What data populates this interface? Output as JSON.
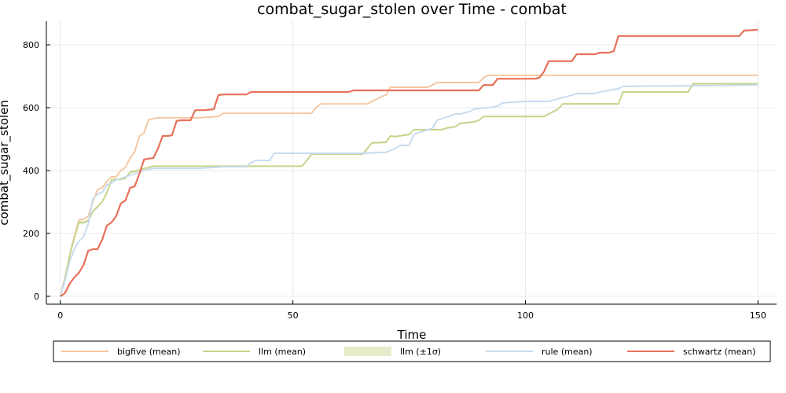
{
  "chart_data": {
    "type": "line",
    "title": "combat_sugar_stolen over Time - combat",
    "xlabel": "Time",
    "ylabel": "combat_sugar_stolen",
    "xlim": [
      -3,
      154
    ],
    "ylim": [
      -25,
      875
    ],
    "xticks": [
      0,
      50,
      100,
      150
    ],
    "yticks": [
      0,
      200,
      400,
      600,
      800
    ],
    "grid": true,
    "legend_position": "bottom",
    "legend": [
      "bigfive (mean)",
      "llm (mean)",
      "llm (±1σ)",
      "rule (mean)",
      "schwartz (mean)"
    ],
    "series": [
      {
        "name": "bigfive (mean)",
        "color": "#f5c6a0",
        "x": [
          0,
          1,
          2,
          3,
          4,
          5,
          6,
          7,
          8,
          9,
          10,
          11,
          12,
          13,
          14,
          15,
          16,
          17,
          18,
          19,
          20,
          21,
          22,
          30,
          34,
          35,
          54,
          55,
          56,
          65,
          66,
          69,
          70,
          71,
          72,
          79,
          80,
          81,
          90,
          91,
          92,
          93,
          150
        ],
        "y": [
          0,
          60,
          130,
          190,
          243,
          245,
          255,
          300,
          340,
          345,
          365,
          380,
          380,
          400,
          410,
          440,
          460,
          510,
          520,
          562,
          565,
          568,
          568,
          568,
          572,
          582,
          582,
          600,
          612,
          612,
          612,
          635,
          640,
          665,
          665,
          665,
          672,
          680,
          680,
          695,
          703,
          703,
          703
        ]
      },
      {
        "name": "llm (mean)",
        "color": "#c5d48a",
        "x": [
          0,
          1,
          2,
          3,
          4,
          5,
          6,
          7,
          8,
          9,
          10,
          11,
          12,
          13,
          14,
          15,
          16,
          17,
          18,
          19,
          20,
          52,
          53,
          54,
          55,
          65,
          66,
          67,
          70,
          71,
          72,
          75,
          76,
          82,
          83,
          85,
          86,
          89,
          90,
          91,
          92,
          104,
          105,
          107,
          108,
          120,
          121,
          135,
          136,
          150
        ],
        "y": [
          0,
          55,
          130,
          185,
          235,
          235,
          240,
          270,
          285,
          300,
          330,
          370,
          372,
          372,
          376,
          395,
          397,
          402,
          406,
          410,
          414,
          414,
          432,
          452,
          452,
          452,
          470,
          488,
          490,
          510,
          508,
          515,
          530,
          530,
          535,
          540,
          550,
          555,
          560,
          572,
          572,
          572,
          580,
          595,
          612,
          612,
          650,
          650,
          676,
          676
        ]
      },
      {
        "name": "llm (±1σ)",
        "color": "#c5d48a",
        "x": [
          0,
          1,
          2,
          3,
          4,
          5,
          6,
          7,
          8,
          9,
          10,
          11,
          12,
          13,
          14,
          15,
          16,
          17,
          18,
          19,
          20,
          52,
          53,
          54,
          55,
          65,
          66,
          67,
          70,
          71,
          72,
          75,
          76,
          82,
          83,
          85,
          86,
          89,
          90,
          91,
          92,
          104,
          105,
          107,
          108,
          120,
          121,
          135,
          136,
          150
        ],
        "upper": [
          0,
          58,
          134,
          190,
          242,
          240,
          245,
          274,
          290,
          304,
          334,
          373,
          375,
          375,
          379,
          398,
          400,
          405,
          409,
          413,
          417,
          417,
          435,
          455,
          455,
          455,
          473,
          491,
          493,
          513,
          511,
          518,
          533,
          533,
          538,
          543,
          553,
          558,
          563,
          575,
          575,
          575,
          583,
          598,
          615,
          615,
          653,
          653,
          679,
          679
        ],
        "lower": [
          0,
          52,
          126,
          180,
          228,
          230,
          235,
          266,
          280,
          296,
          326,
          367,
          369,
          369,
          373,
          392,
          394,
          399,
          403,
          407,
          411,
          411,
          429,
          449,
          449,
          449,
          467,
          485,
          487,
          507,
          505,
          512,
          527,
          527,
          532,
          537,
          547,
          552,
          557,
          569,
          569,
          569,
          577,
          592,
          609,
          609,
          647,
          647,
          673,
          673
        ]
      },
      {
        "name": "rule (mean)",
        "color": "#c6dbef",
        "x": [
          0,
          1,
          2,
          3,
          4,
          5,
          6,
          7,
          8,
          9,
          10,
          11,
          12,
          13,
          14,
          15,
          16,
          17,
          18,
          19,
          20,
          30,
          35,
          40,
          41,
          42,
          45,
          46,
          65,
          70,
          72,
          73,
          75,
          76,
          80,
          81,
          82,
          83,
          85,
          86,
          88,
          89,
          90,
          92,
          94,
          95,
          100,
          101,
          102,
          105,
          107,
          110,
          111,
          115,
          116,
          118,
          119,
          120,
          121,
          150
        ],
        "y": [
          0,
          50,
          110,
          150,
          175,
          190,
          230,
          310,
          325,
          330,
          355,
          360,
          370,
          375,
          380,
          385,
          390,
          395,
          400,
          404,
          407,
          407,
          412,
          412,
          425,
          432,
          432,
          455,
          455,
          458,
          470,
          480,
          480,
          515,
          535,
          560,
          565,
          570,
          580,
          580,
          588,
          595,
          597,
          600,
          605,
          615,
          620,
          620,
          620,
          620,
          628,
          640,
          645,
          645,
          650,
          655,
          658,
          660,
          668,
          672
        ]
      },
      {
        "name": "schwartz (mean)",
        "color": "#e8705a",
        "x": [
          0,
          1,
          2,
          3,
          4,
          5,
          6,
          7,
          8,
          9,
          10,
          11,
          12,
          13,
          14,
          15,
          16,
          17,
          18,
          19,
          20,
          21,
          22,
          23,
          24,
          25,
          26,
          27,
          28,
          29,
          30,
          31,
          33,
          34,
          35,
          40,
          41,
          62,
          63,
          90,
          91,
          93,
          94,
          100,
          101,
          102,
          103,
          104,
          105,
          109,
          110,
          111,
          115,
          116,
          118,
          119,
          120,
          146,
          147,
          150
        ],
        "y": [
          0,
          10,
          40,
          60,
          75,
          100,
          145,
          150,
          150,
          180,
          225,
          235,
          255,
          295,
          305,
          345,
          350,
          390,
          435,
          438,
          440,
          470,
          510,
          510,
          512,
          558,
          560,
          560,
          560,
          592,
          592,
          592,
          595,
          640,
          642,
          642,
          650,
          650,
          655,
          655,
          672,
          672,
          692,
          692,
          692,
          692,
          695,
          715,
          748,
          748,
          748,
          770,
          770,
          775,
          775,
          780,
          828,
          828,
          845,
          848
        ]
      }
    ]
  }
}
